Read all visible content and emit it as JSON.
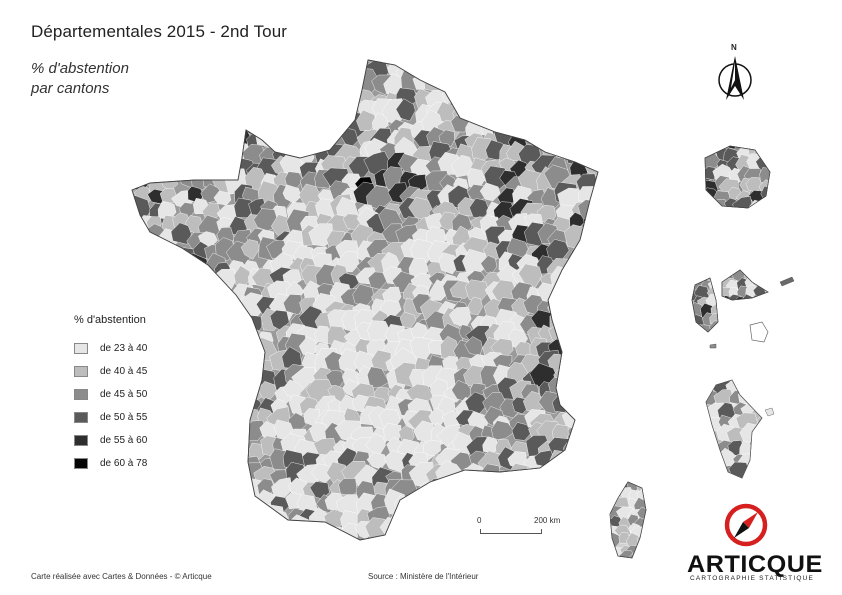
{
  "title": "Départementales 2015 - 2nd Tour",
  "subtitle_line1": "% d'abstention",
  "subtitle_line2": "par cantons",
  "legend": {
    "title": "% d'abstention",
    "items": [
      {
        "label": "de 23 à 40",
        "color": "#e6e6e6"
      },
      {
        "label": "de 40 à 45",
        "color": "#bdbdbd"
      },
      {
        "label": "de 45 à 50",
        "color": "#8c8c8c"
      },
      {
        "label": "de 50 à 55",
        "color": "#5a5a5a"
      },
      {
        "label": "de 55 à 60",
        "color": "#2e2e2e"
      },
      {
        "label": "de 60 à 78",
        "color": "#050505"
      }
    ]
  },
  "north_label": "N",
  "scale": {
    "start": "0",
    "end": "200  km"
  },
  "credit": "Carte réalisée avec Cartes & Données - © Articque",
  "source": "Source : Ministère de l'Intérieur",
  "brand": {
    "name": "ARTICQUE",
    "tagline": "CARTOGRAPHIE STATISTIQUE",
    "accent": "#d6201f"
  }
}
